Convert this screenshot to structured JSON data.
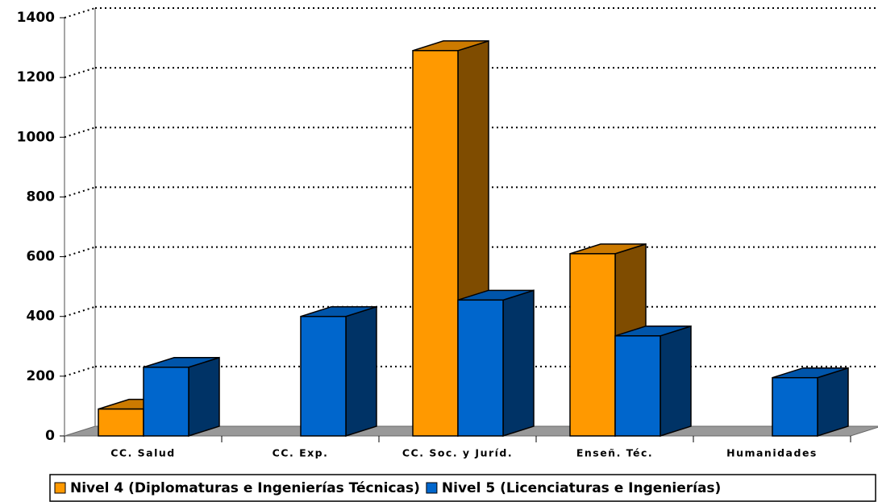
{
  "chart_data": {
    "type": "bar3d",
    "categories": [
      "CC. Salud",
      "CC. Exp.",
      "CC. Soc. y Juríd.",
      "Enseñ. Téc.",
      "Humanidades"
    ],
    "series": [
      {
        "name": "Nivel 4 (Diplomaturas e Ingenierías Técnicas)",
        "color": "#FF9900",
        "side_color": "#7F4C00",
        "values": [
          90,
          null,
          1290,
          610,
          null
        ]
      },
      {
        "name": "Nivel 5 (Licenciaturas e Ingenierías)",
        "color": "#0066CC",
        "side_color": "#003366",
        "values": [
          230,
          400,
          455,
          335,
          195
        ]
      }
    ],
    "ylim": [
      0,
      1400
    ],
    "yticks": [
      0,
      200,
      400,
      600,
      800,
      1000,
      1200,
      1400
    ],
    "grid": true
  }
}
